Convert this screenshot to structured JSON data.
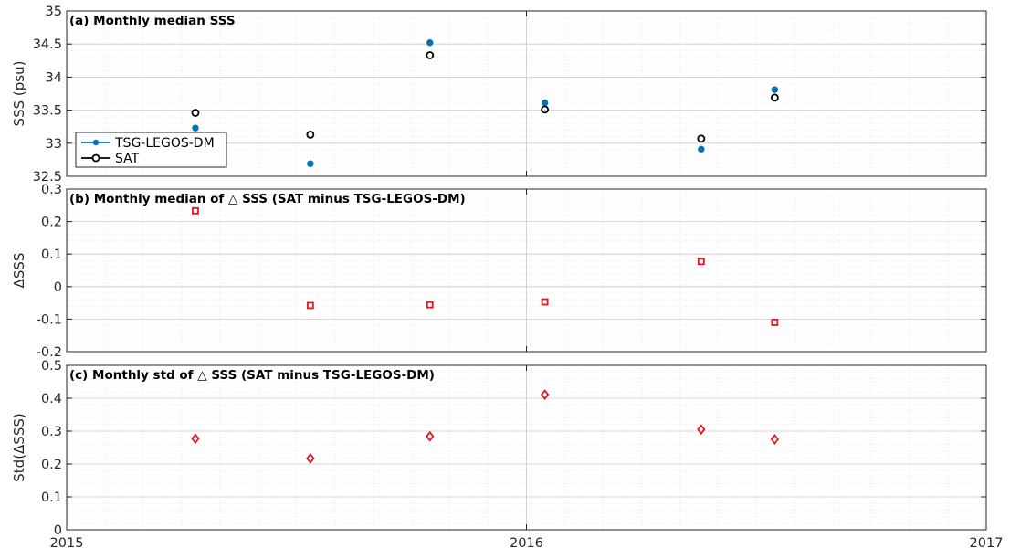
{
  "chart_data": [
    {
      "type": "scatter",
      "panel": "a",
      "title": "(a) Monthly median SSS",
      "ylabel": "SSS (psu)",
      "xlim": [
        2015,
        2017
      ],
      "ylim": [
        32.5,
        35
      ],
      "yticks": [
        32.5,
        33,
        33.5,
        34,
        34.5,
        35
      ],
      "ytick_labels": [
        "32.5",
        "33",
        "33.5",
        "34",
        "34.5",
        "35"
      ],
      "grid": true,
      "legend_position": "bottom-left",
      "series": [
        {
          "name": "TSG-LEGOS-DM",
          "color": "#0072BD",
          "marker": "filled-circle",
          "x": [
            2015.28,
            2015.53,
            2015.79,
            2016.04,
            2016.38,
            2016.54
          ],
          "y": [
            33.23,
            32.69,
            34.52,
            33.61,
            32.91,
            33.81
          ]
        },
        {
          "name": "SAT",
          "color": "#000000",
          "marker": "open-circle",
          "x": [
            2015.28,
            2015.53,
            2015.79,
            2016.04,
            2016.38,
            2016.54
          ],
          "y": [
            33.46,
            33.13,
            34.33,
            33.51,
            33.07,
            33.69
          ]
        }
      ]
    },
    {
      "type": "scatter",
      "panel": "b",
      "title": "(b) Monthly median of △ SSS (SAT minus TSG-LEGOS-DM)",
      "ylabel": "ΔSSS",
      "xlim": [
        2015,
        2017
      ],
      "ylim": [
        -0.2,
        0.3
      ],
      "yticks": [
        -0.2,
        -0.1,
        0,
        0.1,
        0.2,
        0.3
      ],
      "ytick_labels": [
        "-0.2",
        "-0.1",
        "0",
        "0.1",
        "0.2",
        "0.3"
      ],
      "grid": true,
      "series": [
        {
          "color": "#E8141E",
          "marker": "open-square",
          "x": [
            2015.28,
            2015.53,
            2015.79,
            2016.04,
            2016.38,
            2016.54
          ],
          "y": [
            0.233,
            -0.058,
            -0.056,
            -0.047,
            0.077,
            -0.11
          ]
        }
      ]
    },
    {
      "type": "scatter",
      "panel": "c",
      "title": "(c) Monthly std of △ SSS (SAT minus TSG-LEGOS-DM)",
      "ylabel": "Std(ΔSSS)",
      "xlim": [
        2015,
        2017
      ],
      "ylim": [
        0,
        0.5
      ],
      "yticks": [
        0,
        0.1,
        0.2,
        0.3,
        0.4,
        0.5
      ],
      "ytick_labels": [
        "0",
        "0.1",
        "0.2",
        "0.3",
        "0.4",
        "0.5"
      ],
      "xticks": [
        2015,
        2016,
        2017
      ],
      "xtick_labels": [
        "2015",
        "2016",
        "2017"
      ],
      "grid": true,
      "series": [
        {
          "color": "#E8141E",
          "marker": "open-diamond",
          "x": [
            2015.28,
            2015.53,
            2015.79,
            2016.04,
            2016.38,
            2016.54
          ],
          "y": [
            0.277,
            0.217,
            0.284,
            0.411,
            0.305,
            0.275
          ]
        }
      ]
    }
  ]
}
